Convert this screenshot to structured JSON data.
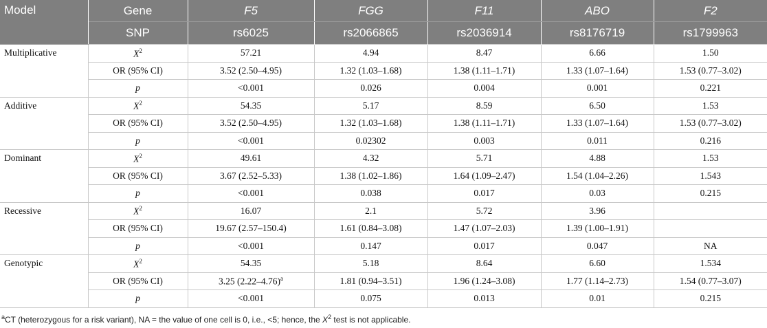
{
  "header": {
    "row1": [
      "Model",
      "Gene",
      "F5",
      "FGG",
      "F11",
      "ABO",
      "F2"
    ],
    "row2": [
      "SNP",
      "rs6025",
      "rs2066865",
      "rs2036914",
      "rs8176719",
      "rs1799963"
    ]
  },
  "groups": [
    {
      "model": "Multiplicative",
      "rows": [
        {
          "stat": {
            "text": "X",
            "sup": "2"
          },
          "cells": [
            "57.21",
            "4.94",
            "8.47",
            "6.66",
            "1.50"
          ]
        },
        {
          "stat": {
            "text": "OR (95% CI)"
          },
          "cells": [
            "3.52 (2.50–4.95)",
            "1.32 (1.03–1.68)",
            "1.38 (1.11–1.71)",
            "1.33 (1.07–1.64)",
            "1.53 (0.77–3.02)"
          ]
        },
        {
          "stat": {
            "text": "p"
          },
          "cells": [
            "<0.001",
            "0.026",
            "0.004",
            "0.001",
            "0.221"
          ]
        }
      ]
    },
    {
      "model": "Additive",
      "rows": [
        {
          "stat": {
            "text": "X",
            "sup": "2"
          },
          "cells": [
            "54.35",
            "5.17",
            "8.59",
            "6.50",
            "1.53"
          ]
        },
        {
          "stat": {
            "text": "OR (95% CI)"
          },
          "cells": [
            "3.52 (2.50–4.95)",
            "1.32 (1.03–1.68)",
            "1.38 (1.11–1.71)",
            "1.33 (1.07–1.64)",
            "1.53 (0.77–3.02)"
          ]
        },
        {
          "stat": {
            "text": "p"
          },
          "cells": [
            "<0.001",
            "0.02302",
            "0.003",
            "0.011",
            "0.216"
          ]
        }
      ]
    },
    {
      "model": "Dominant",
      "rows": [
        {
          "stat": {
            "text": "X",
            "sup": "2"
          },
          "cells": [
            "49.61",
            "4.32",
            "5.71",
            "4.88",
            "1.53"
          ]
        },
        {
          "stat": {
            "text": "OR (95% CI)"
          },
          "cells": [
            "3.67 (2.52–5.33)",
            "1.38 (1.02–1.86)",
            "1.64 (1.09–2.47)",
            "1.54 (1.04–2.26)",
            "1.543"
          ]
        },
        {
          "stat": {
            "text": "p"
          },
          "cells": [
            "<0.001",
            "0.038",
            "0.017",
            "0.03",
            "0.215"
          ]
        }
      ]
    },
    {
      "model": "Recessive",
      "rows": [
        {
          "stat": {
            "text": "X",
            "sup": "2"
          },
          "cells": [
            "16.07",
            "2.1",
            "5.72",
            "3.96",
            null
          ]
        },
        {
          "stat": {
            "text": "OR (95% CI)"
          },
          "cells": [
            "19.67 (2.57–150.4)",
            "1.61 (0.84–3.08)",
            "1.47 (1.07–2.03)",
            "1.39 (1.00–1.91)",
            null
          ]
        },
        {
          "stat": {
            "text": "p"
          },
          "cells": [
            "<0.001",
            "0.147",
            "0.017",
            "0.047",
            "NA"
          ]
        }
      ]
    },
    {
      "model": "Genotypic",
      "rows": [
        {
          "stat": {
            "text": "X",
            "sup": "2"
          },
          "cells": [
            "54.35",
            "5.18",
            "8.64",
            "6.60",
            "1.534"
          ]
        },
        {
          "stat": {
            "text": "OR (95% CI)"
          },
          "cells": [
            {
              "text": "3.25 (2.22–4.76)",
              "sup": "a"
            },
            "1.81 (0.94–3.51)",
            "1.96 (1.24–3.08)",
            "1.77 (1.14–2.73)",
            "1.54 (0.77–3.07)"
          ]
        },
        {
          "stat": {
            "text": "p"
          },
          "cells": [
            "<0.001",
            "0.075",
            "0.013",
            "0.01",
            "0.215"
          ]
        }
      ]
    }
  ],
  "footnote": {
    "sup": "a",
    "text1": "CT (heterozygous for a risk variant), NA = the value of one cell is 0, i.e., <5; hence, the ",
    "symbol": "X",
    "symbol_sup": "2",
    "text2": " test is not applicable."
  }
}
